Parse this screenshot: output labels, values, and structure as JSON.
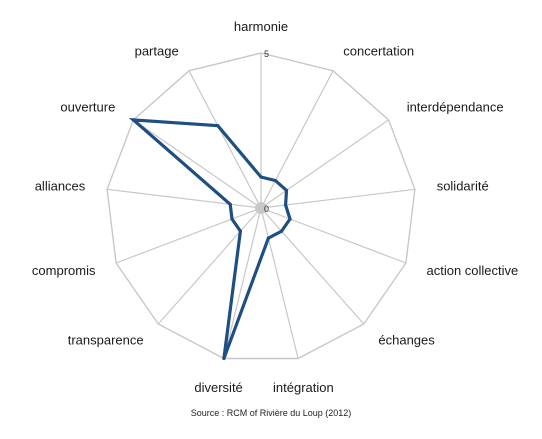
{
  "chart_data": {
    "type": "radar",
    "categories": [
      "harmonie",
      "concertation",
      "interdépendance",
      "solidarité",
      "action collective",
      "échanges",
      "intégration",
      "diversité",
      "transparence",
      "compromis",
      "alliances",
      "ouverture",
      "partage"
    ],
    "series": [
      {
        "values": [
          1,
          1,
          1,
          0.8,
          1,
          1,
          1,
          5,
          1,
          1,
          1,
          5,
          3
        ]
      }
    ],
    "range": [
      0,
      5
    ],
    "ticks": [
      "0",
      "5"
    ],
    "grid": true,
    "colors": {
      "series": "#1f4e82",
      "grid": "#c8c8c8"
    },
    "source": "Source : RCM of Rivière du Loup (2012)"
  }
}
